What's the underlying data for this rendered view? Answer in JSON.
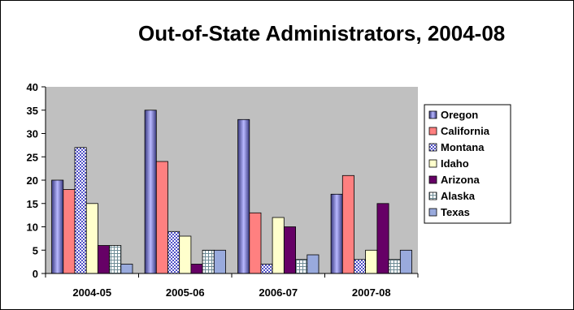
{
  "chart_data": {
    "type": "bar",
    "title": "Out-of-State Administrators, 2004-08",
    "xlabel": "",
    "ylabel": "",
    "ylim": [
      0,
      40
    ],
    "ytick_step": 5,
    "grid": false,
    "legend_position": "right",
    "plot_background": "#c0c0c0",
    "categories": [
      "2004-05",
      "2005-06",
      "2006-07",
      "2007-08"
    ],
    "series": [
      {
        "name": "Oregon",
        "values": [
          20,
          35,
          33,
          17
        ],
        "color": "#8c8ce6",
        "pattern": "gradient"
      },
      {
        "name": "California",
        "values": [
          18,
          24,
          13,
          21
        ],
        "color": "#ff8080",
        "pattern": "solid"
      },
      {
        "name": "Montana",
        "values": [
          27,
          9,
          2,
          3
        ],
        "color": "#5050c8",
        "pattern": "dots"
      },
      {
        "name": "Idaho",
        "values": [
          15,
          8,
          12,
          5
        ],
        "color": "#ffffcc",
        "pattern": "solid"
      },
      {
        "name": "Arizona",
        "values": [
          6,
          2,
          10,
          15
        ],
        "color": "#660066",
        "pattern": "solid"
      },
      {
        "name": "Alaska",
        "values": [
          6,
          5,
          3,
          3
        ],
        "color": "#6e8c96",
        "pattern": "grid"
      },
      {
        "name": "Texas",
        "values": [
          2,
          5,
          4,
          5
        ],
        "color": "#99aadd",
        "pattern": "solid"
      }
    ]
  }
}
